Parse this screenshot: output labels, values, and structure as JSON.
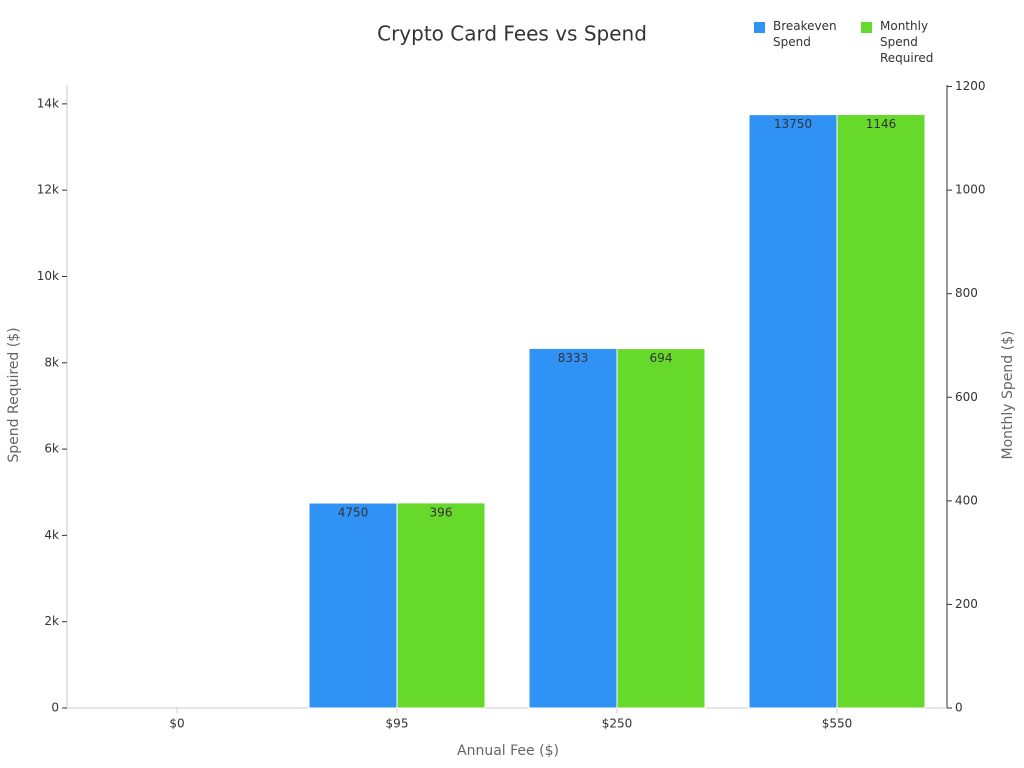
{
  "chart_data": {
    "type": "bar",
    "title": "Crypto Card Fees vs Spend",
    "x_label": "Annual Fee ($)",
    "y_label": "Spend Required ($)",
    "y2_label": "Monthly Spend ($)",
    "categories": [
      "$0",
      "$95",
      "$250",
      "$550"
    ],
    "series": [
      {
        "name": "Breakeven Spend",
        "color": "#3192f5",
        "values": [
          0,
          4750,
          8333,
          13750
        ]
      },
      {
        "name": "Monthly Spend Required",
        "color": "#66d92a",
        "axis": "y2",
        "values": [
          0,
          396,
          694,
          1146
        ]
      }
    ],
    "ylim": [
      0,
      14437
    ],
    "yticks": [
      0,
      {
        "value": 2000,
        "label": "2k"
      },
      {
        "value": 4000,
        "label": "4k"
      },
      {
        "value": 6000,
        "label": "6k"
      },
      {
        "value": 8000,
        "label": "8k"
      },
      {
        "value": 10000,
        "label": "10k"
      },
      {
        "value": 12000,
        "label": "12k"
      },
      {
        "value": 14000,
        "label": "14k"
      }
    ],
    "y2lim": [
      0,
      1203
    ],
    "y2ticks": [
      0,
      200,
      400,
      600,
      800,
      1000,
      1200
    ],
    "legend": "top-right"
  }
}
